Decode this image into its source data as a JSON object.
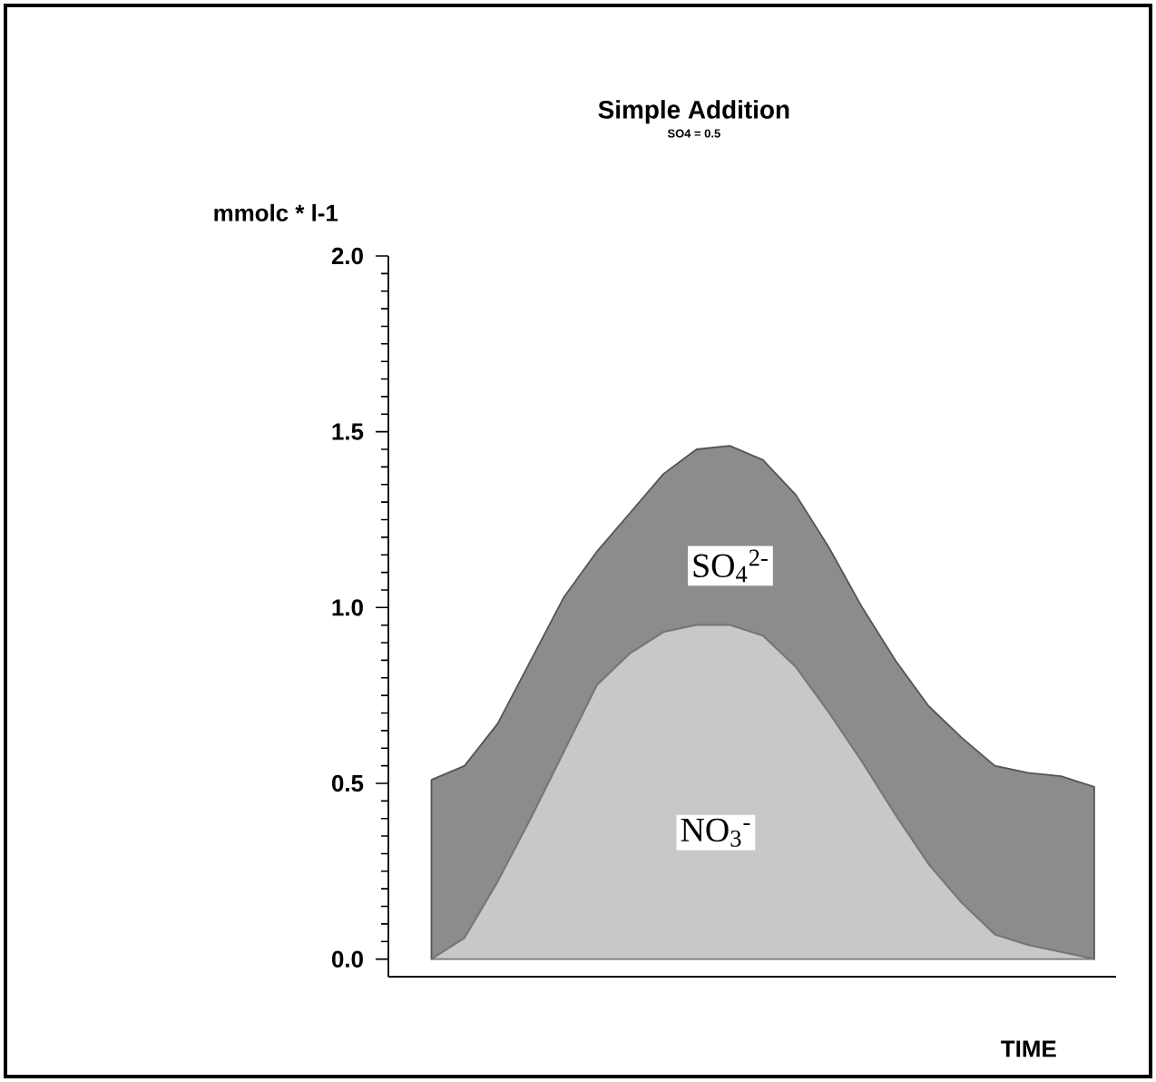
{
  "chart_data": {
    "type": "area",
    "stacked": true,
    "title": "Simple Addition",
    "subtitle": "SO4 = 0.5",
    "ylabel": "mmolc * l-1",
    "xlabel": "TIME",
    "categories": [
      null,
      null,
      null,
      null,
      null,
      null,
      null,
      null,
      null,
      null,
      null,
      null,
      null,
      null,
      null,
      null,
      null,
      null,
      null,
      null,
      null
    ],
    "series": [
      {
        "color": "#c8c8c8",
        "values": [
          0,
          0.06,
          0.22,
          0.4,
          0.59,
          0.78,
          0.87,
          0.93,
          0.95,
          0.95,
          0.92,
          0.83,
          0.7,
          0.56,
          0.41,
          0.27,
          0.16,
          0.07,
          0.04,
          0.02,
          0
        ]
      },
      {
        "color": "#8c8c8c",
        "values": [
          0.51,
          0.49,
          0.45,
          0.45,
          0.44,
          0.38,
          0.4,
          0.45,
          0.5,
          0.51,
          0.5,
          0.49,
          0.47,
          0.44,
          0.44,
          0.45,
          0.47,
          0.48,
          0.49,
          0.5,
          0.49
        ]
      }
    ],
    "annotations": [
      "SO$_{4}$$^{2-}$",
      "NO$_{3}$$^{-}$"
    ],
    "ylim": [
      -0.05,
      2.0
    ],
    "yticks": [
      {
        "value": 0,
        "label": "0.0"
      },
      {
        "value": 0.5,
        "label": "0.5"
      },
      {
        "value": 1.0,
        "label": "1.0"
      },
      {
        "value": 1.5,
        "label": "1.5"
      },
      {
        "value": 2.0,
        "label": "2.0"
      }
    ],
    "tick_labels": "y"
  }
}
